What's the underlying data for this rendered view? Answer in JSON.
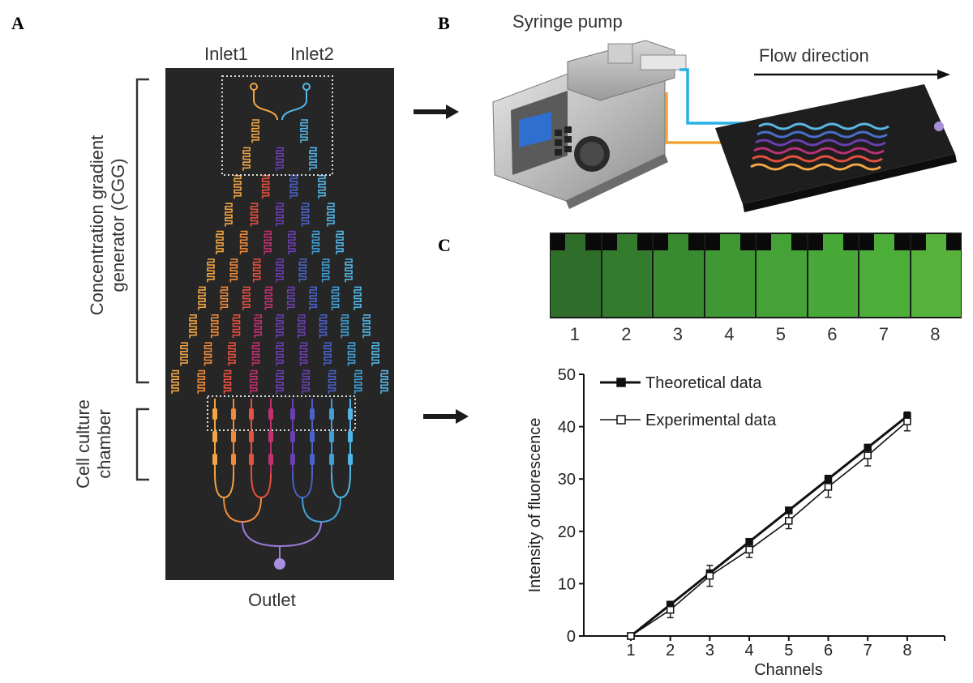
{
  "panels": {
    "a": "A",
    "b": "B",
    "c": "C"
  },
  "chip_diagram": {
    "inlet1": "Inlet1",
    "inlet2": "Inlet2",
    "outlet": "Outlet",
    "cgg_label_line1": "Concentration gradient",
    "cgg_label_line2": "generator (CGG)",
    "chamber_label_line1": "Cell culture",
    "chamber_label_line2": "chamber",
    "channel_colors": [
      "#f2a545",
      "#f08a3a",
      "#e8503f",
      "#c2306f",
      "#6a3fb0",
      "#4a62c8",
      "#3fa0d8",
      "#52b7e6"
    ]
  },
  "setup": {
    "pump_label": "Syringe pump",
    "flow_label": "Flow direction"
  },
  "fluorescence_strip": {
    "numbers": [
      "1",
      "2",
      "3",
      "4",
      "5",
      "6",
      "7",
      "8"
    ],
    "greens": [
      "#2e6e2a",
      "#337c2e",
      "#3a8a31",
      "#409834",
      "#45a236",
      "#49a938",
      "#4bae38",
      "#57b23c"
    ]
  },
  "chart_data": {
    "type": "line",
    "xlabel": "Channels",
    "ylabel": "Intensity of fluorescence",
    "categories": [
      "1",
      "2",
      "3",
      "4",
      "5",
      "6",
      "7",
      "8"
    ],
    "ylim": [
      0,
      50
    ],
    "yticks": [
      "0",
      "10",
      "20",
      "30",
      "40",
      "50"
    ],
    "legend_position": "top-left",
    "series": [
      {
        "name": "Theoretical data",
        "marker": "filled-square",
        "values": [
          0,
          6,
          12,
          18,
          24,
          30,
          36,
          42
        ],
        "errors": [
          0,
          0.5,
          0.5,
          0.6,
          0.6,
          0.7,
          0.6,
          0.7
        ]
      },
      {
        "name": "Experimental data",
        "marker": "open-square",
        "values": [
          0,
          5,
          11.5,
          16.5,
          22,
          28.5,
          34.5,
          41
        ],
        "errors": [
          0,
          1.5,
          2,
          1.5,
          1.5,
          2,
          2,
          1.8
        ]
      }
    ]
  }
}
